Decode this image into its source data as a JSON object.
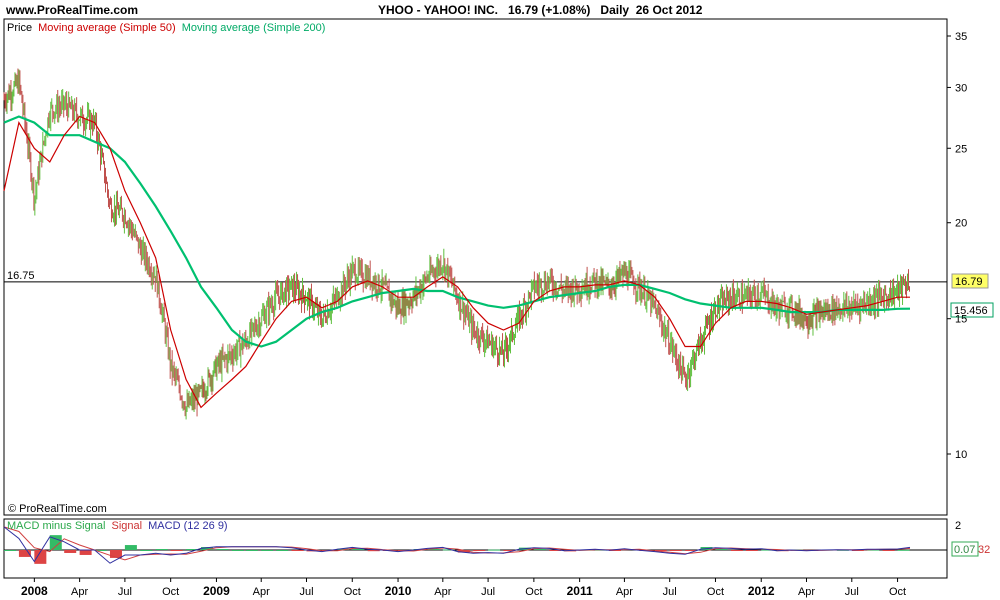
{
  "header": {
    "site": "www.ProRealTime.com",
    "instrument": "YHOO - YAHOO! INC.   16.79 (+1.08%)   Daily  26 Oct 2012"
  },
  "watermark": "© ProRealTime.com",
  "colors": {
    "up": "#5fbf3f",
    "down": "#c0504d",
    "ma50": "#cc0000",
    "ma200": "#00c070",
    "macd": "#3030a0",
    "signal": "#d04040",
    "hist_pos": "#33bb66",
    "hist_neg": "#dd4444",
    "last_price_bg": "#ffff66",
    "ma200_label_border": "#00a060"
  },
  "price_panel": {
    "legend": [
      {
        "label": "Price",
        "color": "#000000"
      },
      {
        "label": "Moving average (Simple 50)",
        "color": "#cc0000"
      },
      {
        "label": "Moving average (Simple 200)",
        "color": "#00aa66"
      }
    ],
    "reference_line_label": "16.75",
    "last_price_label": "16.79",
    "ma200_last_label": "15.456",
    "y_ticks": [
      "35",
      "30",
      "25",
      "20",
      "15",
      "10"
    ]
  },
  "macd_panel": {
    "legend": [
      {
        "label": "MACD minus Signal",
        "color": "#2aa84a"
      },
      {
        "label": "Signal",
        "color": "#cc3333"
      },
      {
        "label": "MACD (12 26 9)",
        "color": "#3030a0"
      }
    ],
    "y_ticks": [
      "2"
    ],
    "value_label_a": "0.07",
    "value_label_b": "32"
  },
  "x_axis": {
    "labels": [
      "2008",
      "Apr",
      "Jul",
      "Oct",
      "2009",
      "Apr",
      "Jul",
      "Oct",
      "2010",
      "Apr",
      "Jul",
      "Oct",
      "2011",
      "Apr",
      "Jul",
      "Oct",
      "2012",
      "Apr",
      "Jul",
      "Oct"
    ],
    "bold": [
      "2008",
      "2009",
      "2010",
      "2011",
      "2012"
    ]
  },
  "chart_data": {
    "type": "line",
    "title": "YHOO - YAHOO! INC.   16.79 (+1.08%)   Daily  26 Oct 2012",
    "x": [
      "2007-11-01",
      "2007-12-01",
      "2008-01-01",
      "2008-02-01",
      "2008-03-01",
      "2008-04-01",
      "2008-05-01",
      "2008-06-01",
      "2008-07-01",
      "2008-08-01",
      "2008-09-01",
      "2008-10-01",
      "2008-11-01",
      "2008-12-01",
      "2009-01-01",
      "2009-02-01",
      "2009-03-01",
      "2009-04-01",
      "2009-05-01",
      "2009-06-01",
      "2009-07-01",
      "2009-08-01",
      "2009-09-01",
      "2009-10-01",
      "2009-11-01",
      "2009-12-01",
      "2010-01-01",
      "2010-02-01",
      "2010-03-01",
      "2010-04-01",
      "2010-05-01",
      "2010-06-01",
      "2010-07-01",
      "2010-08-01",
      "2010-09-01",
      "2010-10-01",
      "2010-11-01",
      "2010-12-01",
      "2011-01-01",
      "2011-02-01",
      "2011-03-01",
      "2011-04-01",
      "2011-05-01",
      "2011-06-01",
      "2011-07-01",
      "2011-08-01",
      "2011-09-01",
      "2011-10-01",
      "2011-11-01",
      "2011-12-01",
      "2012-01-01",
      "2012-02-01",
      "2012-03-01",
      "2012-04-01",
      "2012-05-01",
      "2012-06-01",
      "2012-07-01",
      "2012-08-01",
      "2012-09-01",
      "2012-10-01",
      "2012-10-26"
    ],
    "series": [
      {
        "name": "Price",
        "values": [
          29.0,
          30.5,
          21.5,
          28.0,
          28.5,
          27.5,
          27.0,
          21.0,
          20.5,
          18.5,
          17.0,
          13.0,
          11.5,
          12.0,
          13.0,
          13.5,
          14.0,
          15.0,
          16.0,
          16.5,
          16.0,
          15.0,
          16.0,
          17.3,
          17.0,
          16.5,
          15.5,
          16.0,
          17.0,
          17.8,
          16.0,
          14.5,
          14.0,
          13.5,
          15.0,
          16.5,
          16.8,
          16.3,
          16.5,
          16.8,
          16.5,
          17.2,
          16.5,
          15.5,
          14.0,
          12.5,
          14.0,
          15.5,
          16.0,
          16.0,
          16.2,
          15.5,
          15.5,
          15.0,
          15.3,
          15.5,
          15.5,
          15.8,
          16.0,
          16.3,
          16.79
        ]
      },
      {
        "name": "Moving average (Simple 50)",
        "values": [
          22.0,
          27.0,
          25.0,
          24.0,
          26.0,
          27.5,
          27.0,
          25.0,
          22.0,
          20.0,
          18.0,
          14.5,
          12.5,
          11.5,
          12.0,
          12.5,
          13.0,
          14.0,
          15.0,
          15.8,
          16.0,
          15.5,
          15.8,
          16.5,
          16.8,
          16.5,
          16.0,
          16.0,
          16.5,
          17.0,
          16.5,
          15.5,
          14.8,
          14.5,
          14.8,
          15.8,
          16.3,
          16.5,
          16.5,
          16.6,
          16.6,
          16.8,
          16.6,
          16.0,
          15.0,
          13.8,
          13.8,
          14.8,
          15.5,
          15.8,
          15.8,
          15.7,
          15.5,
          15.2,
          15.3,
          15.4,
          15.5,
          15.6,
          15.8,
          16.0,
          16.0
        ]
      },
      {
        "name": "Moving average (Simple 200)",
        "values": [
          27.0,
          27.5,
          27.0,
          26.0,
          26.0,
          26.0,
          25.5,
          25.0,
          24.0,
          22.5,
          21.0,
          19.5,
          18.0,
          16.5,
          15.5,
          14.5,
          14.0,
          13.8,
          14.0,
          14.5,
          15.0,
          15.3,
          15.5,
          15.8,
          16.0,
          16.2,
          16.3,
          16.4,
          16.3,
          16.3,
          16.0,
          15.8,
          15.6,
          15.5,
          15.6,
          15.8,
          16.0,
          16.1,
          16.2,
          16.3,
          16.5,
          16.6,
          16.6,
          16.4,
          16.2,
          15.9,
          15.7,
          15.6,
          15.5,
          15.5,
          15.5,
          15.4,
          15.3,
          15.3,
          15.3,
          15.4,
          15.4,
          15.4,
          15.4,
          15.45,
          15.456
        ]
      }
    ],
    "xlabel": "",
    "ylabel": "",
    "ylim": [
      8.5,
      36
    ],
    "yscale": "log",
    "reference_line": 16.75,
    "grid": false,
    "legend": "top-left"
  }
}
